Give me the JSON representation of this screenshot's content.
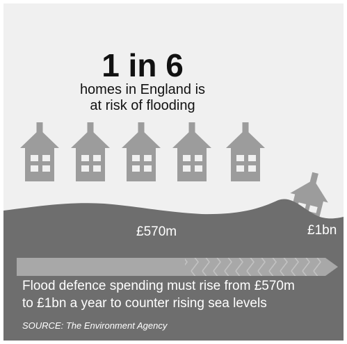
{
  "headline": "1 in 6",
  "subtitle": [
    "homes in England is",
    "at risk of flooding"
  ],
  "amount_current": "£570m",
  "amount_target": "£1bn",
  "caption": [
    "Flood defence spending must rise from £570m",
    "to £1bn a year to counter rising sea levels"
  ],
  "source": "SOURCE: The Environment Agency",
  "icons": {
    "house": "house-icon",
    "arrow": "arrow-icon"
  },
  "colors": {
    "card": "#f0f0f0",
    "house": "#9c9c9c",
    "window": "#f0f0f0",
    "water": "#6e6e6e",
    "arrow": "#a8a8a8",
    "text_dark": "#111111",
    "text_light": "#ffffff"
  }
}
